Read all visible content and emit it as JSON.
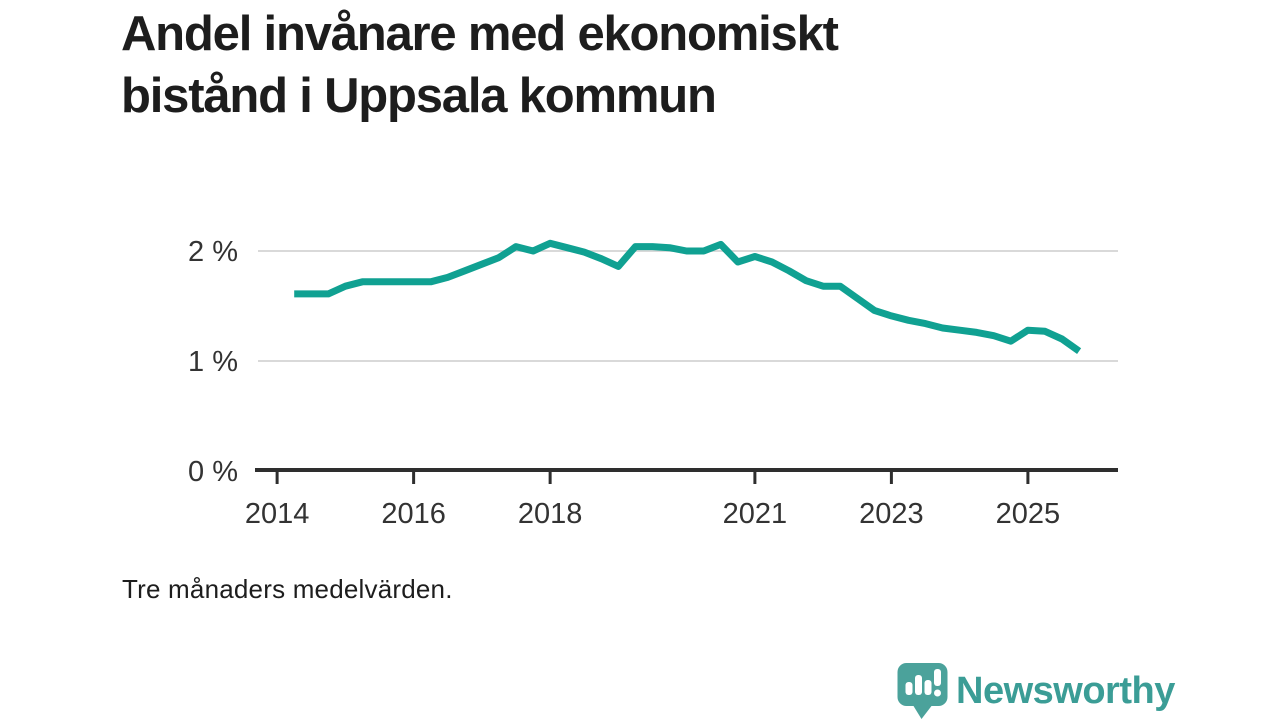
{
  "header": {
    "title_line1": "Andel invånare med ekonomiskt",
    "title_line2": "bistånd i Uppsala kommun"
  },
  "footnote": "Tre månaders medelvärden.",
  "branding": {
    "name": "Newsworthy",
    "icon": "bar-chart-speech-bubble-icon",
    "wordmark_color": "#3b9d96",
    "bubble_color": "#4ba29b"
  },
  "colors": {
    "line": "#10a192",
    "grid": "#d9d9d9",
    "axis": "#2e2e2e",
    "tick_label": "#333333",
    "title": "#1d1d1d"
  },
  "chart_data": {
    "type": "line",
    "title": "Andel invånare med ekonomiskt bistånd i Uppsala kommun",
    "subtitle": "Tre månaders medelvärden.",
    "unit": "%",
    "series_name": "Andel invånare med ekonomiskt bistånd, Uppsala kommun",
    "x": [
      2014.25,
      2014.5,
      2014.75,
      2015,
      2015.25,
      2015.5,
      2015.75,
      2016,
      2016.25,
      2016.5,
      2016.75,
      2017,
      2017.25,
      2017.5,
      2017.75,
      2018,
      2018.25,
      2018.5,
      2018.75,
      2019,
      2019.25,
      2019.5,
      2019.75,
      2020,
      2020.25,
      2020.5,
      2020.75,
      2021,
      2021.25,
      2021.5,
      2021.75,
      2022,
      2022.25,
      2022.5,
      2022.75,
      2023,
      2023.25,
      2023.5,
      2023.75,
      2024,
      2024.25,
      2024.5,
      2024.75,
      2025,
      2025.25,
      2025.5,
      2025.75
    ],
    "values": [
      1.61,
      1.61,
      1.61,
      1.68,
      1.72,
      1.72,
      1.72,
      1.72,
      1.72,
      1.76,
      1.82,
      1.88,
      1.94,
      2.04,
      2.0,
      2.07,
      2.03,
      1.99,
      1.93,
      1.86,
      2.04,
      2.04,
      2.03,
      2.0,
      2.0,
      2.06,
      1.9,
      1.95,
      1.9,
      1.82,
      1.73,
      1.68,
      1.68,
      1.57,
      1.46,
      1.41,
      1.37,
      1.34,
      1.3,
      1.28,
      1.26,
      1.23,
      1.18,
      1.28,
      1.27,
      1.2,
      1.09
    ],
    "xlim": [
      2013.72,
      2026.32
    ],
    "ylim": [
      0,
      2.3
    ],
    "y_ticks": [
      {
        "value": 0,
        "label": "0 %"
      },
      {
        "value": 1,
        "label": "1 %"
      },
      {
        "value": 2,
        "label": "2 %"
      }
    ],
    "x_ticks": [
      {
        "value": 2014,
        "label": "2014"
      },
      {
        "value": 2016,
        "label": "2016"
      },
      {
        "value": 2018,
        "label": "2018"
      },
      {
        "value": 2021,
        "label": "2021"
      },
      {
        "value": 2023,
        "label": "2023"
      },
      {
        "value": 2025,
        "label": "2025"
      }
    ],
    "grid": "horizontal",
    "legend": false
  }
}
